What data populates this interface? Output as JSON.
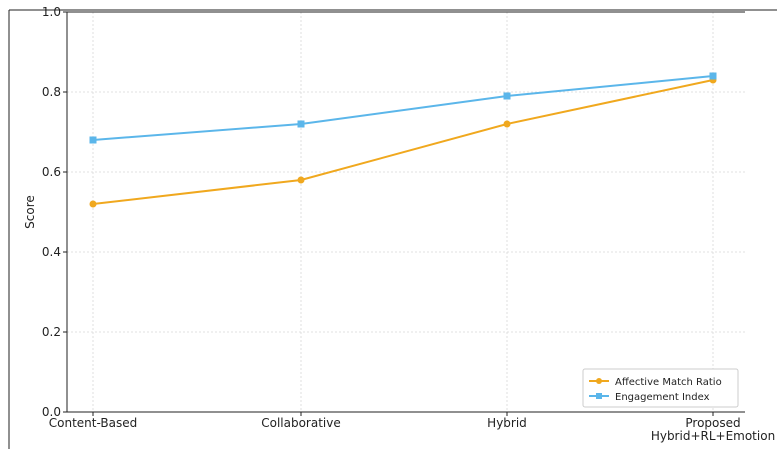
{
  "chart_data": {
    "type": "line",
    "title": "",
    "xlabel": "",
    "ylabel": "Score",
    "categories": [
      "Content-Based",
      "Collaborative",
      "Hybrid",
      "Proposed\nHybrid+RL+Emotion"
    ],
    "ylim": [
      0,
      1.0
    ],
    "yticks": [
      "0.0",
      "0.2",
      "0.4",
      "0.6",
      "0.8",
      "1.0"
    ],
    "grid": true,
    "legend_position": "bottom-right",
    "series": [
      {
        "name": "Affective Match Ratio",
        "values": [
          0.52,
          0.58,
          0.72,
          0.83
        ],
        "color": "#f0a81e"
      },
      {
        "name": "Engagement Index",
        "values": [
          0.68,
          0.72,
          0.79,
          0.84
        ],
        "color": "#5bb6ea"
      }
    ]
  }
}
